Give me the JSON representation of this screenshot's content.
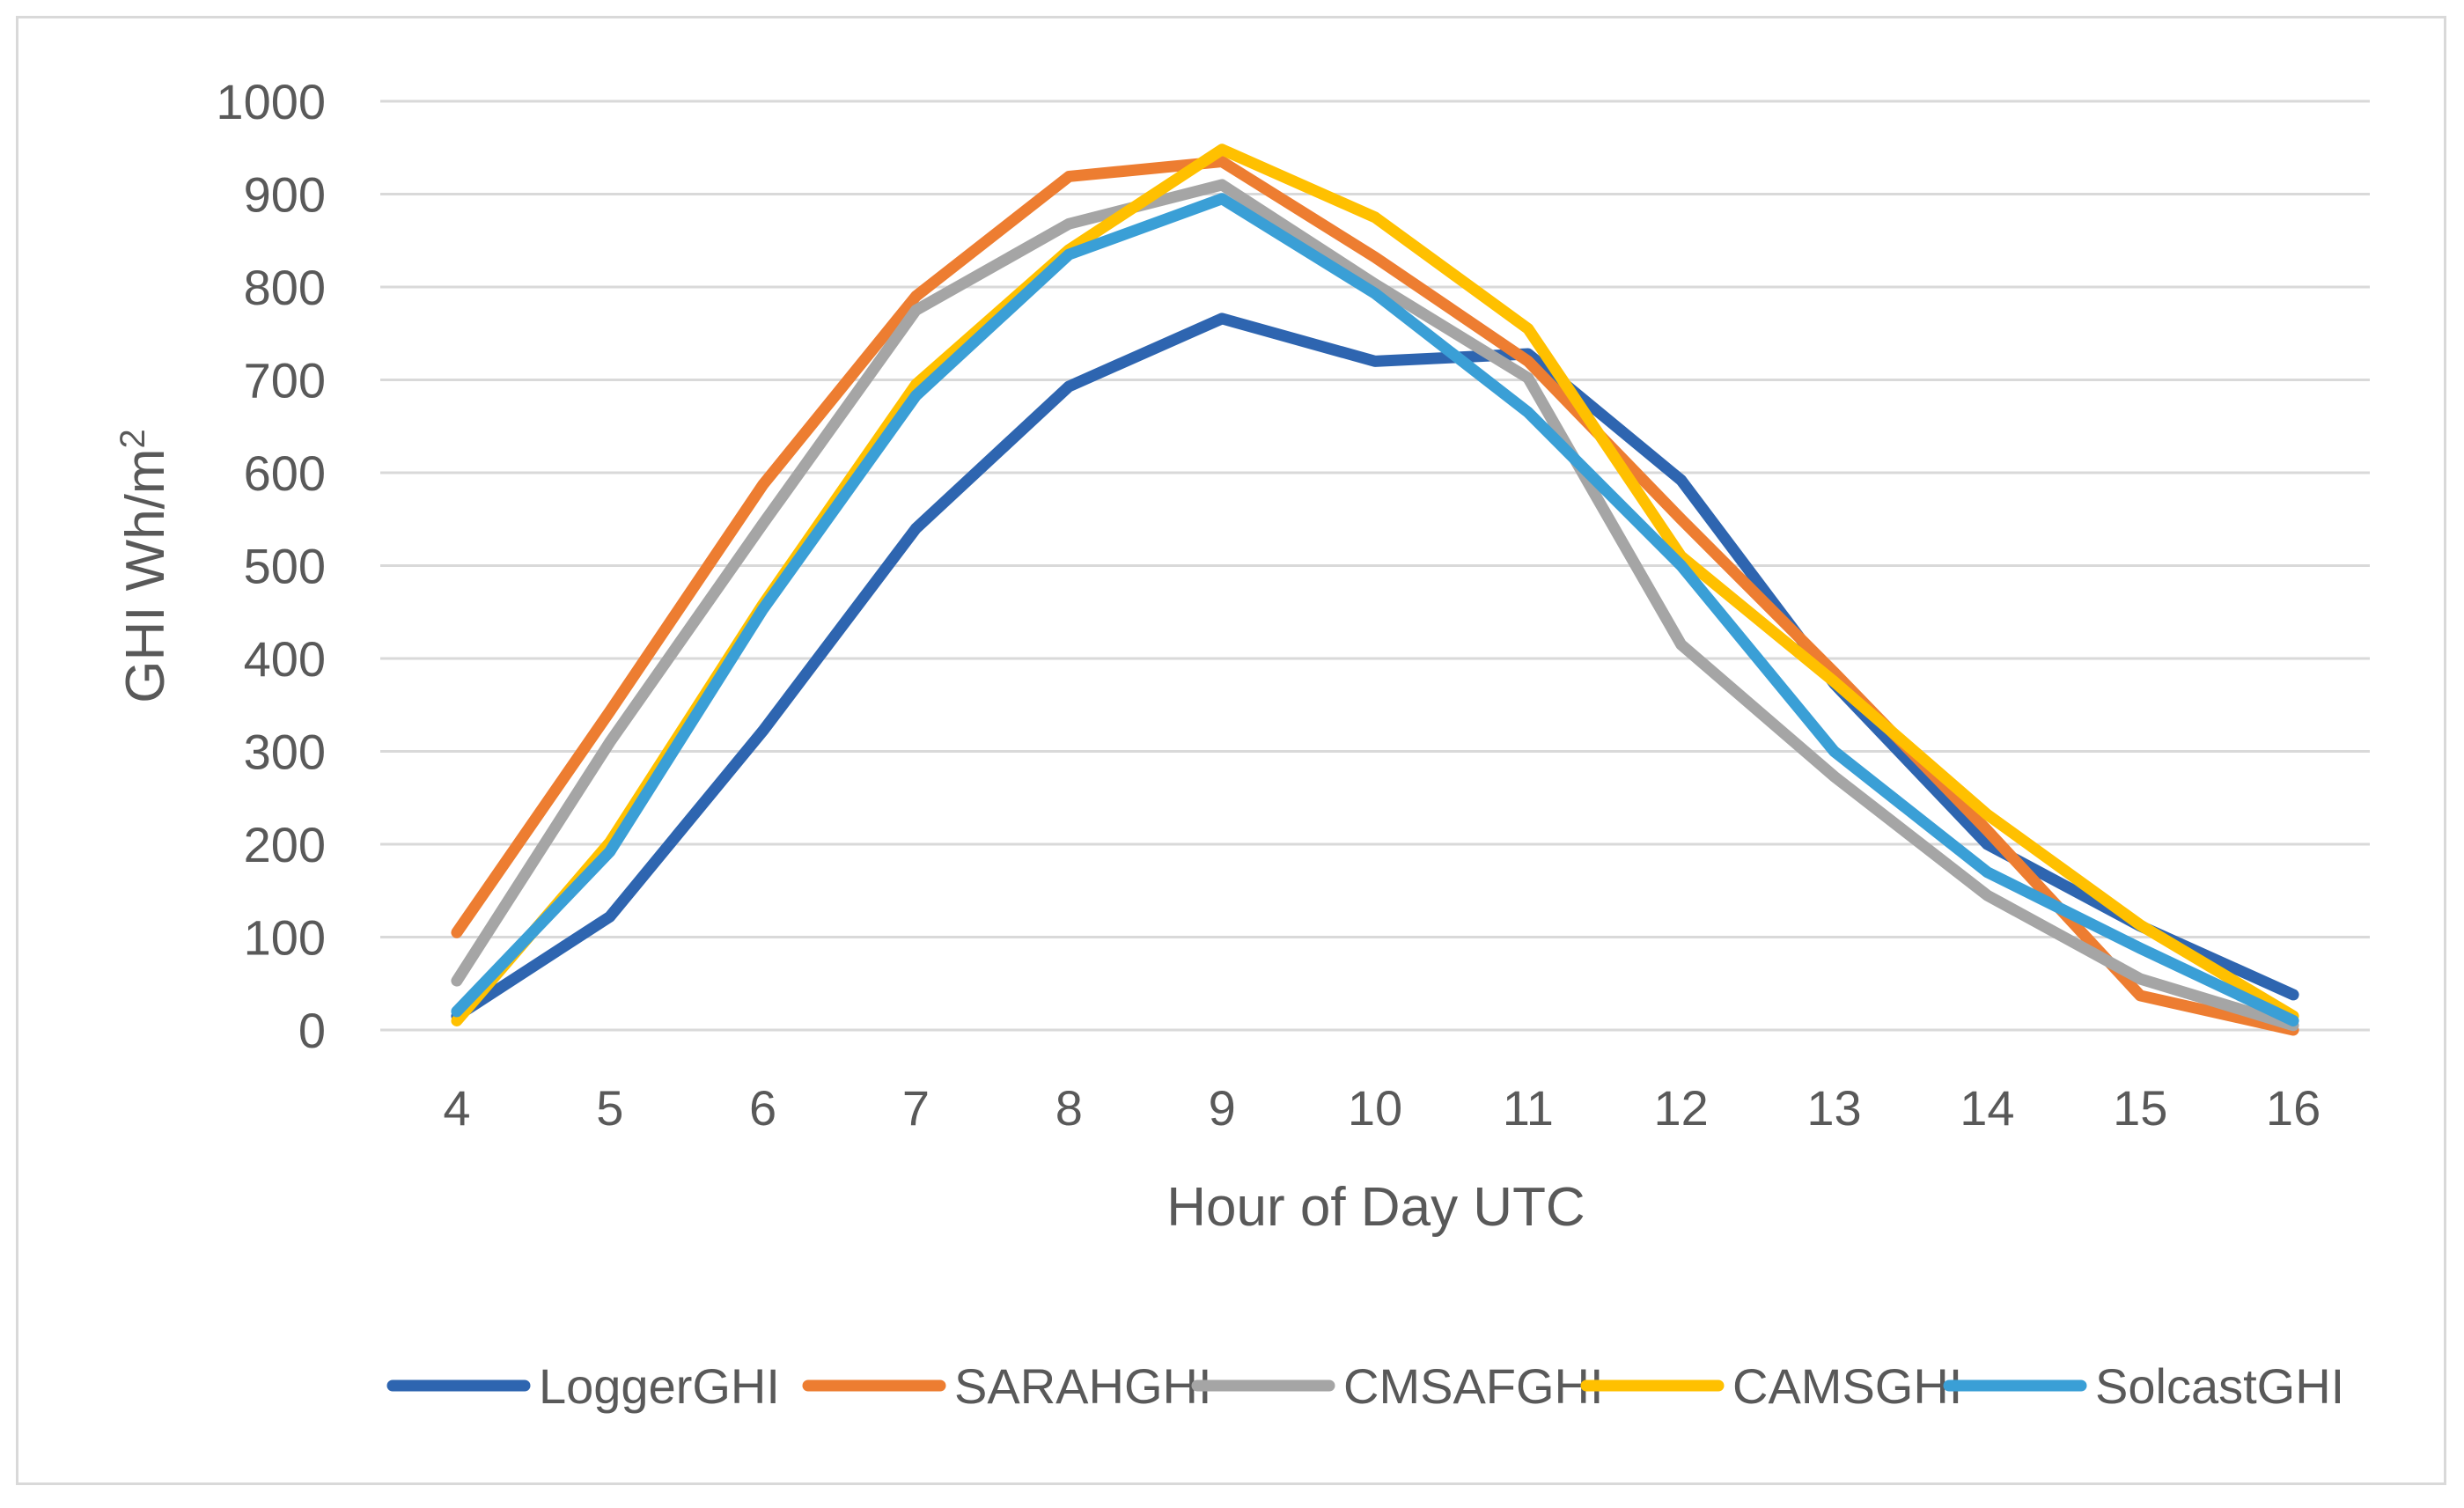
{
  "chart_data": {
    "type": "line",
    "title": "",
    "xlabel": "Hour of Day UTC",
    "ylabel": "GHI Wh/m",
    "ylabel_superscript": "2",
    "x": [
      4,
      5,
      6,
      7,
      8,
      9,
      10,
      11,
      12,
      13,
      14,
      15,
      16
    ],
    "x_tick_labels": [
      "4",
      "5",
      "6",
      "7",
      "8",
      "9",
      "10",
      "11",
      "12",
      "13",
      "14",
      "15",
      "16"
    ],
    "ylim": [
      0,
      1000
    ],
    "y_ticks": [
      0,
      100,
      200,
      300,
      400,
      500,
      600,
      700,
      800,
      900,
      1000
    ],
    "y_tick_labels": [
      "0",
      "100",
      "200",
      "300",
      "400",
      "500",
      "600",
      "700",
      "800",
      "900",
      "1000"
    ],
    "grid": true,
    "legend_position": "bottom",
    "series": [
      {
        "name": "LoggerGHI",
        "color": "#2e65b0",
        "values": [
          15,
          122,
          322,
          540,
          693,
          766,
          720,
          728,
          592,
          373,
          200,
          112,
          38
        ]
      },
      {
        "name": "SARAHGHI",
        "color": "#ed7d31",
        "values": [
          105,
          343,
          587,
          790,
          919,
          935,
          832,
          720,
          550,
          385,
          215,
          37,
          0
        ]
      },
      {
        "name": "CMSAFGHI",
        "color": "#a5a5a5",
        "values": [
          53,
          310,
          545,
          775,
          868,
          910,
          803,
          702,
          415,
          273,
          145,
          55,
          5
        ]
      },
      {
        "name": "CAMSGHI",
        "color": "#ffc000",
        "values": [
          10,
          202,
          458,
          695,
          840,
          948,
          875,
          755,
          510,
          375,
          232,
          113,
          15
        ]
      },
      {
        "name": "SolcastGHI",
        "color": "#3a9fd6",
        "values": [
          20,
          192,
          453,
          683,
          835,
          895,
          793,
          665,
          500,
          300,
          170,
          88,
          10
        ]
      }
    ]
  }
}
